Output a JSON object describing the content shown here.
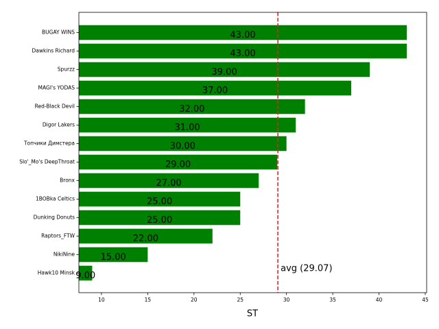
{
  "chart_data": {
    "type": "barh",
    "categories": [
      "BUGAY WINS",
      "Dawkins Richard",
      "Spurzz",
      "MAGI's YODAS",
      "Red-Black Devil",
      "Digor Lakers",
      "Топчики Димстера",
      "Slo'_Mo's DeepThroat",
      "Bronx",
      "1BOBka Celtics",
      "Dunking Donuts",
      "Raptors_FTW",
      "NikiNine",
      "Hawk10 Minsk"
    ],
    "values": [
      43,
      43,
      39,
      37,
      32,
      31,
      30,
      29,
      27,
      25,
      25,
      22,
      15,
      9
    ],
    "value_labels": [
      "43.00",
      "43.00",
      "39.00",
      "37.00",
      "32.00",
      "31.00",
      "30.00",
      "29.00",
      "27.00",
      "25.00",
      "25.00",
      "22.00",
      "15.00",
      "9.00"
    ],
    "color": "#008000",
    "xlabel": "ST",
    "xlim": [
      7.56,
      45.15
    ],
    "xticks": [
      10,
      15,
      20,
      25,
      30,
      35,
      40,
      45
    ],
    "average": {
      "value": 29.07,
      "label": "avg (29.07)",
      "color": "#d62728"
    }
  }
}
